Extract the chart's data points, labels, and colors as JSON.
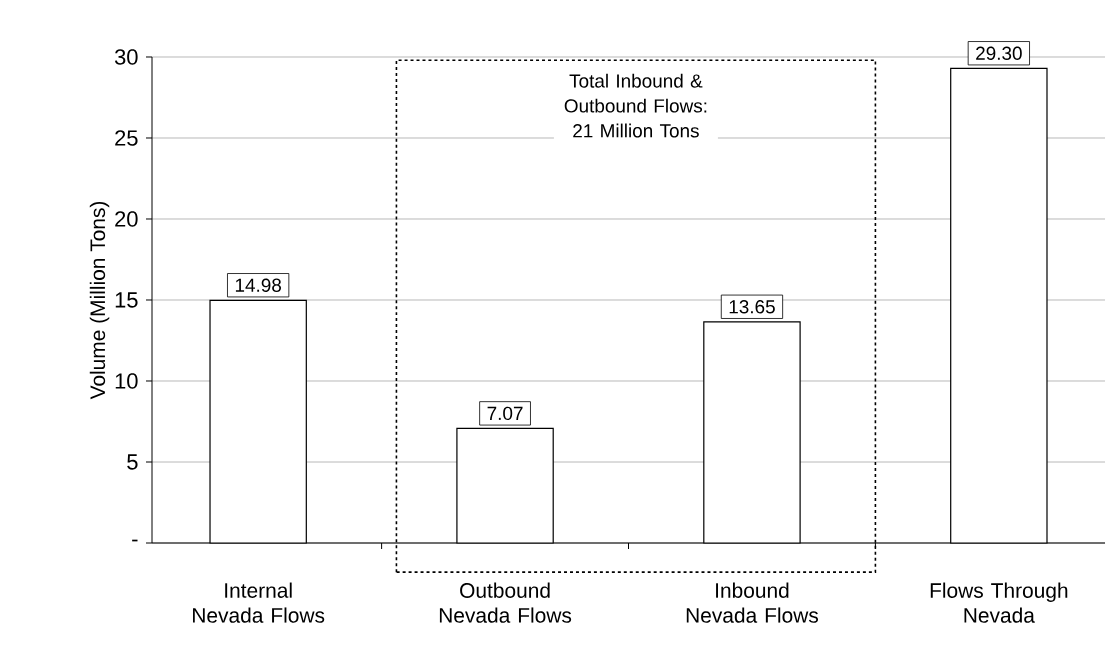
{
  "chart_data": {
    "type": "bar",
    "ylabel": "Volume (Million Tons)",
    "categories": [
      "Internal Nevada Flows",
      "Outbound Nevada Flows",
      "Inbound Nevada Flows",
      "Flows Through Nevada"
    ],
    "values": [
      14.98,
      7.07,
      13.65,
      29.3
    ],
    "value_labels": [
      "14.98",
      "7.07",
      "13.65",
      "29.30"
    ],
    "color": "#ffffff",
    "ylim": [
      0,
      30
    ],
    "yticks": [
      {
        "value": 0,
        "label": "-"
      },
      5,
      10,
      15,
      20,
      25,
      30
    ],
    "grid": "y",
    "annotations": [
      "Total Inbound & Outbound Flows: 21 Million Tons"
    ]
  }
}
